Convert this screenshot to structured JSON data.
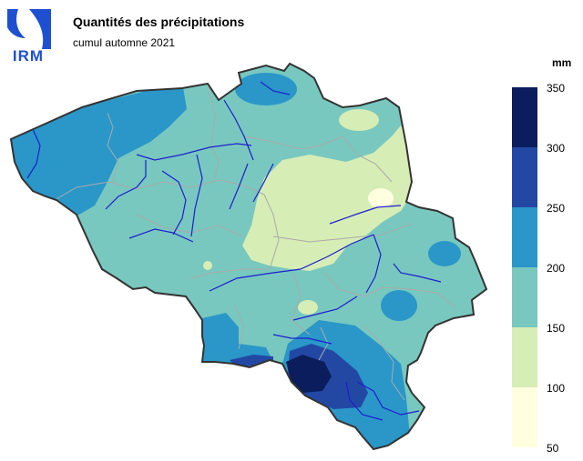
{
  "header": {
    "title": "Quantités des précipitations",
    "subtitle": "cumul automne 2021"
  },
  "logo": {
    "text": "IRM"
  },
  "legend": {
    "unit": "mm",
    "ticks": [
      "350",
      "300",
      "250",
      "200",
      "150",
      "100",
      "50"
    ],
    "classes": [
      {
        "from": 300,
        "to": 350,
        "color": "#0b1d5c"
      },
      {
        "from": 250,
        "to": 300,
        "color": "#2348a4"
      },
      {
        "from": 200,
        "to": 250,
        "color": "#2a97c8"
      },
      {
        "from": 150,
        "to": 200,
        "color": "#78c8bf"
      },
      {
        "from": 100,
        "to": 150,
        "color": "#d6edb5"
      },
      {
        "from": 50,
        "to": 100,
        "color": "#ffffe0"
      }
    ]
  },
  "map": {
    "border_color": "#333333",
    "river_color": "#1e1ecf",
    "admin_color": "#aaaaaa"
  }
}
